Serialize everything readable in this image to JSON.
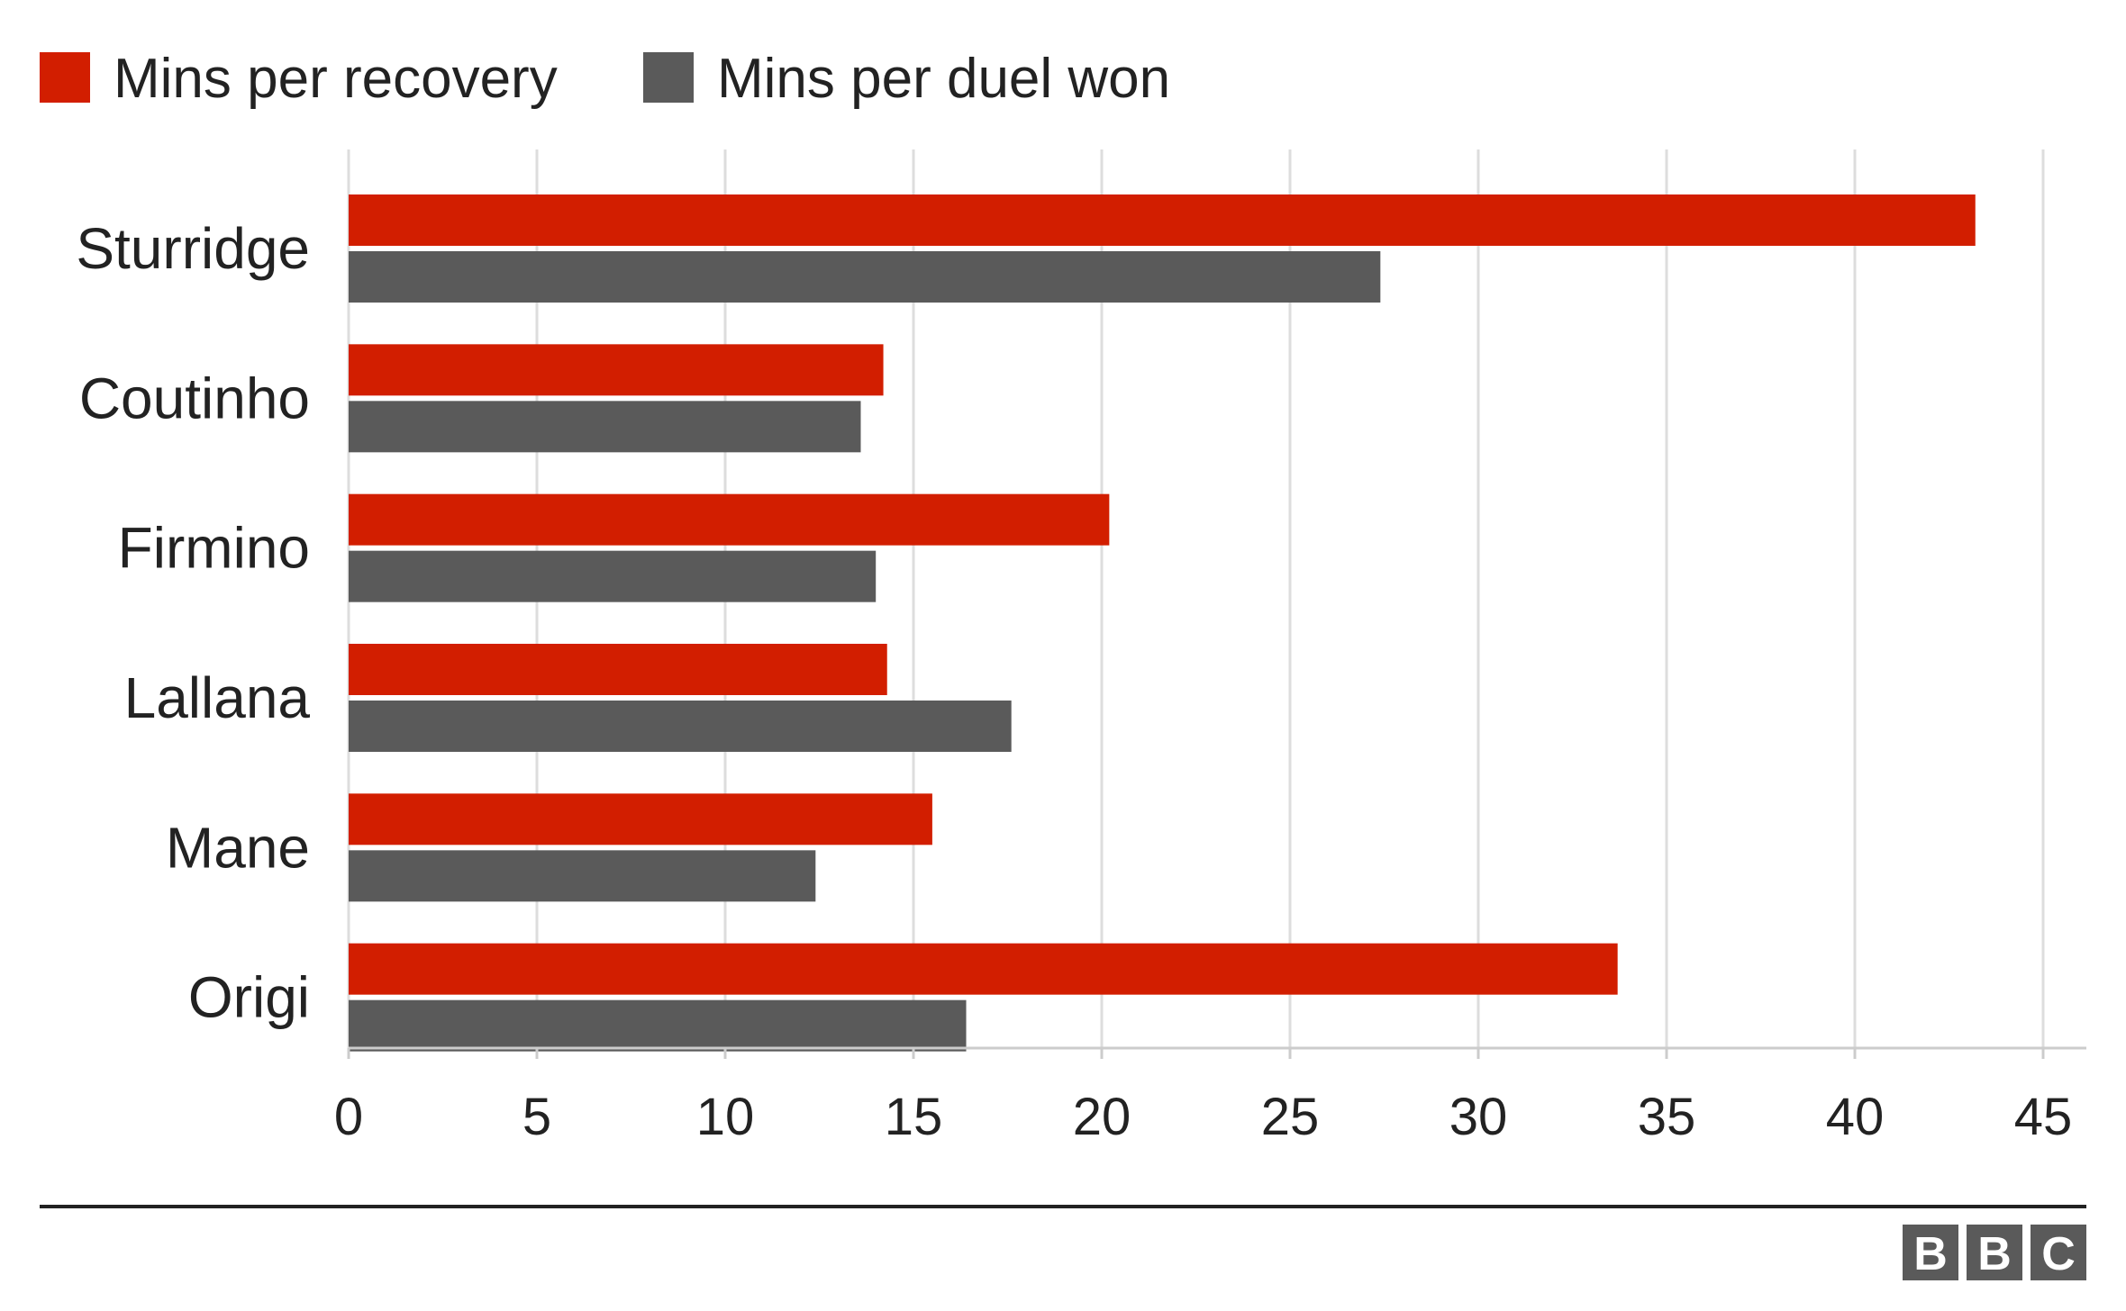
{
  "chart_data": {
    "type": "bar",
    "orientation": "horizontal",
    "categories": [
      "Sturridge",
      "Coutinho",
      "Firmino",
      "Lallana",
      "Mane",
      "Origi"
    ],
    "series": [
      {
        "name": "Mins per recovery",
        "color": "#d21e00",
        "values": [
          43.2,
          14.2,
          20.2,
          14.3,
          15.5,
          33.7
        ]
      },
      {
        "name": "Mins per duel won",
        "color": "#5a5a5a",
        "values": [
          27.4,
          13.6,
          14.0,
          17.6,
          12.4,
          16.4
        ]
      }
    ],
    "xlim": [
      0,
      45
    ],
    "xticks": [
      0,
      5,
      10,
      15,
      20,
      25,
      30,
      35,
      40,
      45
    ],
    "xtick_labels": [
      "0",
      "5",
      "10",
      "15",
      "20",
      "25",
      "30",
      "35",
      "40",
      "45"
    ],
    "grid": true,
    "legend_position": "top-left",
    "title": "",
    "xlabel": "",
    "ylabel": ""
  },
  "footer": {
    "logo_letters": [
      "B",
      "B",
      "C"
    ]
  }
}
